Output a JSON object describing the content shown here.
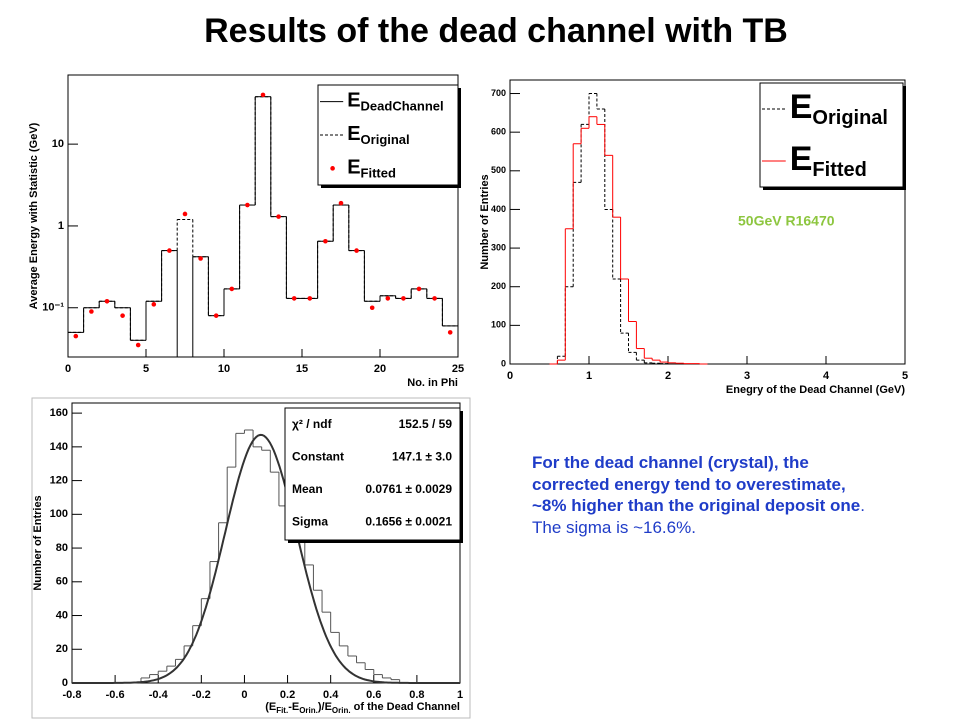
{
  "title": "Results of the dead channel with TB",
  "note": {
    "bold": "For the dead channel (crystal), the corrected energy tend to overestimate,  ~8% higher than the original deposit one",
    "normal": ". The sigma is ~16.6%."
  },
  "chart_data": [
    {
      "type": "histogram",
      "log_y": true,
      "y_label": "Average Energy with Statistic (GeV)",
      "x_label": "No. in Phi",
      "bins": [
        0,
        1,
        2,
        3,
        4,
        5,
        6,
        7,
        8,
        9,
        10,
        11,
        12,
        13,
        14,
        15,
        16,
        17,
        18,
        19,
        20,
        21,
        22,
        23,
        24,
        25
      ],
      "series": [
        {
          "name": "E",
          "subscript": "DeadChannel",
          "style": "solid",
          "color": "#000000",
          "values": [
            0.05,
            0.1,
            0.12,
            0.1,
            0.04,
            0.12,
            0.5,
            0,
            0.42,
            0.08,
            0.17,
            1.8,
            38,
            1.3,
            0.13,
            0.13,
            0.65,
            1.8,
            0.5,
            0.12,
            0.14,
            0.13,
            0.17,
            0.13,
            0.06
          ]
        },
        {
          "name": "E",
          "subscript": "Original",
          "style": "dashed",
          "color": "#000000",
          "values": [
            0.05,
            0.1,
            0.12,
            0.1,
            0.04,
            0.12,
            0.5,
            1.2,
            0.42,
            0.08,
            0.17,
            1.8,
            38,
            1.3,
            0.13,
            0.13,
            0.65,
            1.8,
            0.5,
            0.12,
            0.14,
            0.13,
            0.17,
            0.13,
            0.06
          ]
        },
        {
          "name": "E",
          "subscript": "Fitted",
          "style": "points",
          "color": "#ff0000",
          "values": [
            0.045,
            0.09,
            0.12,
            0.08,
            0.035,
            0.11,
            0.5,
            1.4,
            0.4,
            0.08,
            0.17,
            1.8,
            40,
            1.3,
            0.13,
            0.13,
            0.65,
            1.9,
            0.5,
            0.1,
            0.13,
            0.13,
            0.17,
            0.13,
            0.05
          ]
        }
      ],
      "xlim": [
        0,
        25
      ],
      "xticks": [
        0,
        5,
        10,
        15,
        20,
        25
      ],
      "ylim": [
        0.025,
        70
      ],
      "yticks": [
        {
          "value": 0.1,
          "label": "10⁻¹"
        },
        1,
        10
      ]
    },
    {
      "type": "histogram",
      "log_y": false,
      "y_label": "Number of Entries",
      "x_label": "Enegry of the Dead Channel (GeV)",
      "annotation": "50GeV R16470",
      "annotation_color": "#8dc63f",
      "bins": [
        0.5,
        0.6,
        0.7,
        0.8,
        0.9,
        1.0,
        1.1,
        1.2,
        1.3,
        1.4,
        1.5,
        1.6,
        1.7,
        1.8,
        1.9,
        2.0,
        2.1,
        2.2,
        2.3,
        2.4,
        2.5
      ],
      "series": [
        {
          "name": "E",
          "subscript": "Original",
          "style": "dashed",
          "color": "#000000",
          "values": [
            0,
            20,
            200,
            470,
            620,
            700,
            660,
            400,
            220,
            80,
            30,
            10,
            3,
            2,
            1,
            0,
            0,
            0,
            0,
            0
          ]
        },
        {
          "name": "E",
          "subscript": "Fitted",
          "style": "solid",
          "color": "#ff0000",
          "values": [
            0,
            10,
            350,
            570,
            610,
            640,
            620,
            540,
            380,
            220,
            110,
            40,
            15,
            10,
            5,
            3,
            2,
            1,
            1,
            0
          ]
        }
      ],
      "xlim": [
        0,
        5
      ],
      "xticks": [
        0,
        1,
        2,
        3,
        4,
        5
      ],
      "ylim": [
        0,
        735
      ],
      "yticks": [
        0,
        100,
        200,
        300,
        400,
        500,
        600,
        700
      ]
    },
    {
      "type": "histogram",
      "log_y": false,
      "y_label": "Number of Entries",
      "x_label_parts": [
        "(E",
        "Fit.",
        "-E",
        "Orin.",
        ")/E",
        "Orin.",
        " of the Dead Channel"
      ],
      "bins": [
        -0.48,
        -0.44,
        -0.4,
        -0.36,
        -0.32,
        -0.28,
        -0.24,
        -0.2,
        -0.16,
        -0.12,
        -0.08,
        -0.04,
        0,
        0.04,
        0.08,
        0.12,
        0.16,
        0.2,
        0.24,
        0.28,
        0.32,
        0.36,
        0.4,
        0.44,
        0.48,
        0.52,
        0.56,
        0.6,
        0.64,
        0.68,
        0.72
      ],
      "series": [
        {
          "style": "solid",
          "color": "#555555",
          "values": [
            3,
            5,
            7,
            10,
            14,
            22,
            34,
            50,
            72,
            95,
            128,
            148,
            150,
            140,
            138,
            125,
            105,
            92,
            85,
            70,
            55,
            42,
            30,
            22,
            16,
            12,
            8,
            5,
            3,
            2
          ]
        }
      ],
      "stats": [
        {
          "label": "χ² / ndf",
          "text": "152.5 / 59"
        },
        {
          "label": "Constant",
          "text": "147.1 ± 3.0",
          "value": 147.1
        },
        {
          "label": "Mean",
          "text": "0.0761 ± 0.0029",
          "value": 0.0761
        },
        {
          "label": "Sigma",
          "text": "0.1656 ± 0.0021",
          "value": 0.1656
        }
      ],
      "xlim": [
        -0.8,
        1
      ],
      "xticks": [
        -0.8,
        -0.6,
        -0.4,
        -0.2,
        0,
        0.2,
        0.4,
        0.6,
        0.8,
        1
      ],
      "ylim": [
        0,
        166
      ],
      "yticks": [
        0,
        20,
        40,
        60,
        80,
        100,
        120,
        140,
        160
      ]
    }
  ]
}
